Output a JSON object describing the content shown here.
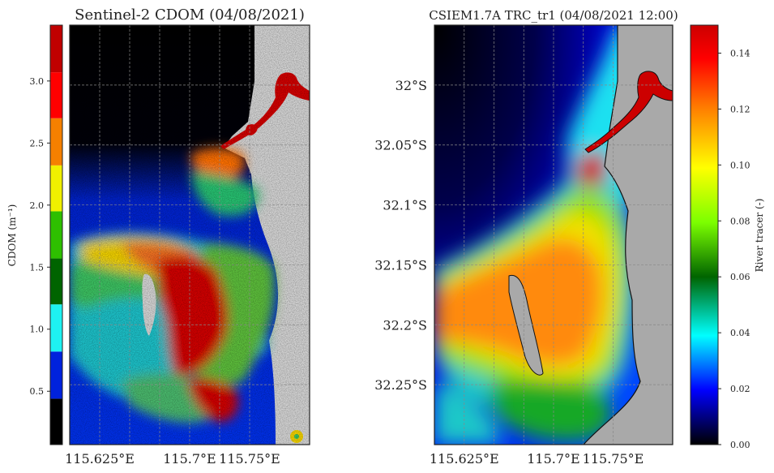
{
  "left_panel": {
    "title": "Sentinel-2 CDOM (04/08/2021)",
    "colorbar_label": "CDOM (m⁻¹)",
    "colorbar_ticks": [
      "0.5",
      "1.0",
      "1.5",
      "2.0",
      "2.5",
      "3.0"
    ],
    "x_ticks": [
      "115.625°E",
      "115.7°E",
      "115.75°E"
    ]
  },
  "right_panel": {
    "title": "CSIEM1.7A TRC_tr1 (04/08/2021 12:00)",
    "colorbar_label": "River tracer (-)",
    "colorbar_ticks": [
      "0.00",
      "0.02",
      "0.04",
      "0.06",
      "0.08",
      "0.10",
      "0.12",
      "0.14"
    ],
    "x_ticks": [
      "115.625°E",
      "115.7°E",
      "115.75°E"
    ],
    "y_ticks": [
      "32°S",
      "32.05°S",
      "32.1°S",
      "32.15°S",
      "32.2°S",
      "32.25°S"
    ]
  },
  "colors": {
    "cdom_bins": [
      "#000000",
      "#0022dd",
      "#1ef2f2",
      "#006400",
      "#2ebf00",
      "#f0f000",
      "#f58000",
      "#ff0000",
      "#c00000"
    ],
    "tracer_cmap": [
      "#000000",
      "#0000ff",
      "#00ffff",
      "#006400",
      "#7cff00",
      "#ffff00",
      "#ff8000",
      "#ff0000",
      "#cc0000"
    ],
    "land_left": "#d3d3d3",
    "land_right": "#a9a9a9"
  },
  "chart_data": [
    {
      "type": "heatmap",
      "title": "Sentinel-2 CDOM (04/08/2021)",
      "colorbar_label": "CDOM (m⁻¹)",
      "colorbar_range": [
        0.07,
        3.45
      ],
      "colorbar_bounds": [
        0.07,
        0.44,
        0.82,
        1.2,
        1.57,
        1.95,
        2.32,
        2.7,
        3.07,
        3.45
      ],
      "x_ticks": [
        115.625,
        115.7,
        115.75
      ],
      "x_range": [
        115.6,
        115.8
      ],
      "y_range": [
        -32.3,
        -31.95
      ],
      "grid": true
    },
    {
      "type": "heatmap",
      "title": "CSIEM1.7A TRC_tr1 (04/08/2021 12:00)",
      "colorbar_label": "River tracer (-)",
      "colorbar_range": [
        0,
        0.15
      ],
      "colorbar_ticks": [
        0,
        0.02,
        0.04,
        0.06,
        0.08,
        0.1,
        0.12,
        0.14
      ],
      "x_ticks": [
        115.625,
        115.7,
        115.75
      ],
      "y_ticks": [
        -32,
        -32.05,
        -32.1,
        -32.15,
        -32.2,
        -32.25
      ],
      "x_range": [
        115.6,
        115.8
      ],
      "y_range": [
        -32.3,
        -31.95
      ],
      "grid": true
    }
  ]
}
